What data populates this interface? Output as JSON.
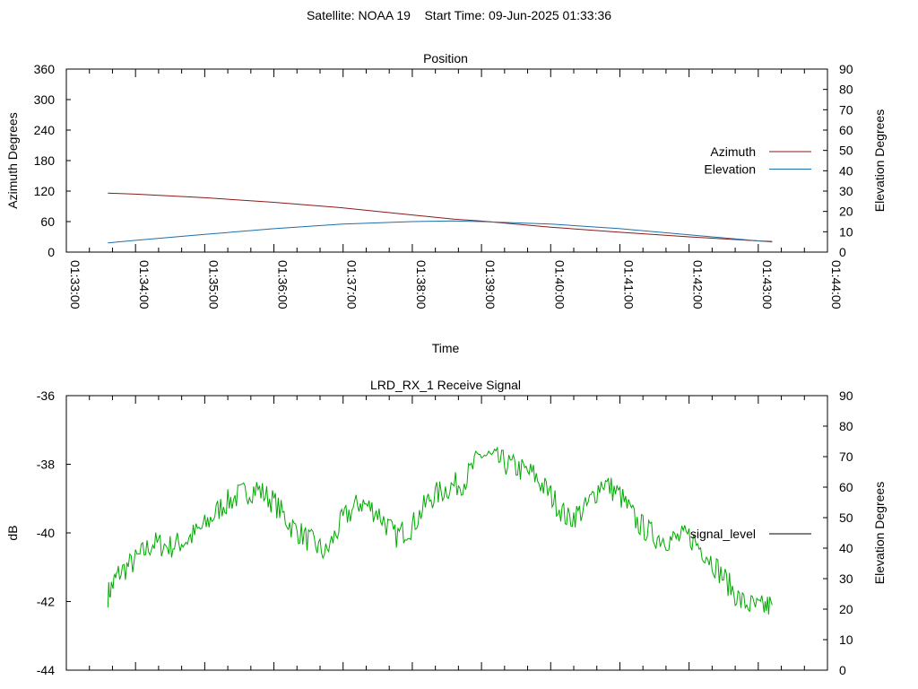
{
  "header": {
    "title": "Satellite: NOAA 19    Start Time: 09-Jun-2025 01:33:36"
  },
  "chart_data": [
    {
      "type": "line",
      "title": "Position",
      "xlabel": "Time",
      "ylabel": "Azimuth Degrees",
      "y2label": "Elevation Degrees",
      "x_tick_labels": [
        "01:33:00",
        "01:34:00",
        "01:35:00",
        "01:36:00",
        "01:37:00",
        "01:38:00",
        "01:39:00",
        "01:40:00",
        "01:41:00",
        "01:42:00",
        "01:43:00",
        "01:44:00"
      ],
      "xlim": [
        "01:33:00",
        "01:44:00"
      ],
      "ylim": [
        0,
        360
      ],
      "y_ticks": [
        "0",
        "60",
        "120",
        "180",
        "240",
        "300",
        "360"
      ],
      "y2lim": [
        0,
        90
      ],
      "y2_ticks": [
        "0",
        "10",
        "20",
        "30",
        "40",
        "50",
        "60",
        "70",
        "80",
        "90"
      ],
      "legend_position": "right",
      "grid": false,
      "series": [
        {
          "name": "Azimuth",
          "axis": "y",
          "color": "#8b1a1a",
          "x": [
            "01:33:36",
            "01:34:00",
            "01:35:00",
            "01:36:00",
            "01:37:00",
            "01:38:00",
            "01:38:36",
            "01:39:00",
            "01:40:00",
            "01:41:00",
            "01:42:00",
            "01:43:00",
            "01:43:12"
          ],
          "y": [
            116,
            114,
            107,
            98,
            87,
            73,
            65,
            61,
            49,
            39,
            30,
            22,
            21
          ]
        },
        {
          "name": "Elevation",
          "axis": "y2",
          "color": "#1f6fa8",
          "x": [
            "01:33:36",
            "01:34:00",
            "01:35:00",
            "01:36:00",
            "01:37:00",
            "01:38:00",
            "01:38:36",
            "01:39:00",
            "01:40:00",
            "01:41:00",
            "01:42:00",
            "01:43:00",
            "01:43:12"
          ],
          "y": [
            4.5,
            5.8,
            8.7,
            11.5,
            13.8,
            15.0,
            15.3,
            15.0,
            13.8,
            11.5,
            8.5,
            5.5,
            5.0
          ]
        }
      ]
    },
    {
      "type": "line",
      "title": "LRD_RX_1 Receive Signal",
      "xlabel": "",
      "ylabel": "dB",
      "y2label": "Elevation Degrees",
      "xlim": [
        "01:33:00",
        "01:44:00"
      ],
      "ylim": [
        -44,
        -36
      ],
      "y_ticks": [
        "-44",
        "-42",
        "-40",
        "-38",
        "-36"
      ],
      "y2lim": [
        0,
        90
      ],
      "y2_ticks": [
        "0",
        "10",
        "20",
        "30",
        "40",
        "50",
        "60",
        "70",
        "80",
        "90"
      ],
      "legend_position": "right",
      "grid": false,
      "series": [
        {
          "name": "signal_level",
          "axis": "y",
          "color": "#00aa00",
          "x": [
            "01:33:36",
            "01:33:45",
            "01:34:00",
            "01:34:15",
            "01:34:30",
            "01:34:45",
            "01:35:00",
            "01:35:15",
            "01:35:30",
            "01:35:45",
            "01:36:00",
            "01:36:15",
            "01:36:30",
            "01:36:45",
            "01:37:00",
            "01:37:15",
            "01:37:30",
            "01:37:45",
            "01:38:00",
            "01:38:15",
            "01:38:30",
            "01:38:45",
            "01:39:00",
            "01:39:15",
            "01:39:30",
            "01:39:45",
            "01:40:00",
            "01:40:15",
            "01:40:30",
            "01:40:45",
            "01:41:00",
            "01:41:15",
            "01:41:30",
            "01:41:45",
            "01:42:00",
            "01:42:15",
            "01:42:30",
            "01:42:45",
            "01:43:00",
            "01:43:12"
          ],
          "y": [
            -41.8,
            -41.2,
            -40.8,
            -40.3,
            -40.4,
            -40.2,
            -39.8,
            -39.2,
            -38.9,
            -38.7,
            -39.1,
            -39.8,
            -40.2,
            -40.6,
            -39.6,
            -39.1,
            -39.4,
            -40.1,
            -39.8,
            -39.0,
            -38.7,
            -38.5,
            -37.7,
            -37.9,
            -38.1,
            -38.3,
            -38.9,
            -39.6,
            -39.3,
            -38.5,
            -38.9,
            -39.7,
            -40.1,
            -40.2,
            -40.1,
            -40.6,
            -41.3,
            -42.0,
            -42.2,
            -42.1
          ]
        }
      ]
    }
  ]
}
